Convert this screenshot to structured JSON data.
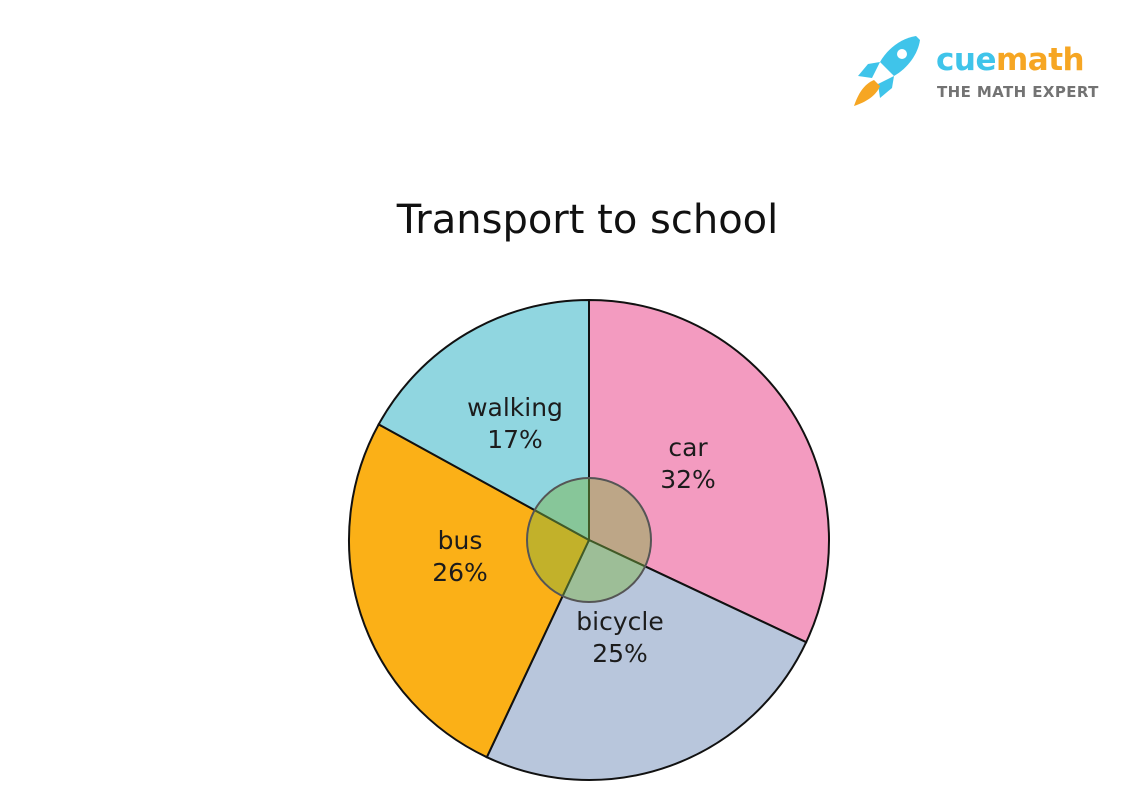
{
  "brand": {
    "name_part1": "cue",
    "name_part2": "math",
    "tagline": "THE MATH EXPERT",
    "icon": "rocket-icon",
    "colors": {
      "primary": "#3fc4ea",
      "accent": "#f6a623",
      "tagline": "#737373"
    }
  },
  "chart_data": {
    "type": "pie",
    "title": "Transport to school",
    "start_angle_deg": 0,
    "direction": "clockwise",
    "slices": [
      {
        "label": "car",
        "value": 32,
        "display": "32%",
        "color": "#f39bc0"
      },
      {
        "label": "bicycle",
        "value": 25,
        "display": "25%",
        "color": "#b8c6dc"
      },
      {
        "label": "bus",
        "value": 26,
        "display": "26%",
        "color": "#fbb017"
      },
      {
        "label": "walking",
        "value": 17,
        "display": "17%",
        "color": "#90d6e0"
      }
    ],
    "center_circle_color": "#7cb342"
  }
}
